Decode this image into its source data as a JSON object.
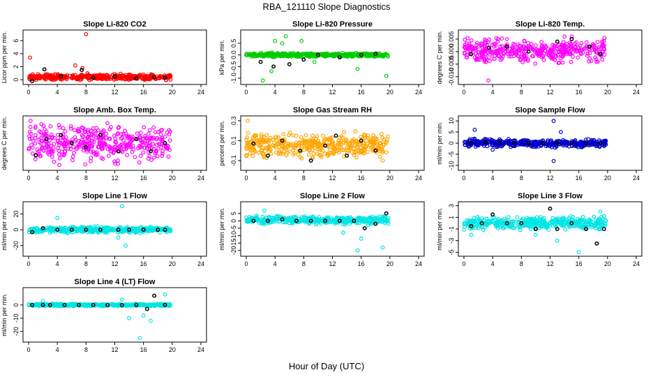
{
  "page_title": "RBA_121110  Slope Diagnostics",
  "x_axis_label": "Hour of Day (UTC)",
  "colors": {
    "co2": "#ff0000",
    "pressure": "#00cc00",
    "temp": "#ff00ff",
    "box_temp": "#ff00ff",
    "rh": "#ffa500",
    "sample_flow": "#0000cc",
    "line_flow": "#00e5e5",
    "marker": "#000000"
  },
  "chart_data": [
    {
      "type": "scatter",
      "id": "co2",
      "title": "Slope Li-820 CO2",
      "ylabel": "Licor ppm per min.",
      "xlim": [
        0,
        24
      ],
      "xticks": [
        0,
        4,
        8,
        12,
        16,
        20,
        24
      ],
      "ylim": [
        -0.3,
        7.2
      ],
      "yticks": [
        "0",
        "2",
        "4",
        "6"
      ],
      "ytick_values": [
        0,
        2,
        4,
        6
      ],
      "x_range": [
        0,
        19.8
      ],
      "center": 0.4,
      "spread": 0.25,
      "color": "#ff0000",
      "outliers": [
        [
          8,
          7
        ],
        [
          0.2,
          3.4
        ],
        [
          7.5,
          1.8
        ],
        [
          6.5,
          2.2
        ],
        [
          8.2,
          1.0
        ]
      ],
      "black_points": [
        [
          0.5,
          -0.2
        ],
        [
          2.2,
          1.6
        ],
        [
          4.5,
          0.5
        ],
        [
          7.4,
          1.5
        ],
        [
          9,
          0.3
        ],
        [
          12,
          0.5
        ],
        [
          15,
          0.2
        ],
        [
          17.5,
          0.4
        ],
        [
          19,
          0.3
        ]
      ]
    },
    {
      "type": "scatter",
      "id": "pressure",
      "title": "Slope Li-820 Pressure",
      "ylabel": "kPa per min.",
      "xlim": [
        0,
        24
      ],
      "xticks": [
        0,
        4,
        8,
        12,
        16,
        20,
        24
      ],
      "ylim": [
        -1.15,
        0.95
      ],
      "yticks": [
        "-1.0",
        "-0.5",
        "0.0",
        "0.5"
      ],
      "ytick_values": [
        -1.0,
        -0.5,
        0.0,
        0.5
      ],
      "x_range": [
        0,
        19.8
      ],
      "center": 0.0,
      "spread": 0.05,
      "color": "#00cc00",
      "outliers": [
        [
          2.3,
          -1.1
        ],
        [
          5.5,
          0.8
        ],
        [
          4.0,
          0.6
        ],
        [
          5.0,
          0.5
        ],
        [
          7.7,
          0.6
        ],
        [
          9.5,
          -0.3
        ],
        [
          15.5,
          -0.6
        ],
        [
          19.5,
          -0.9
        ],
        [
          3.5,
          -0.7
        ]
      ],
      "black_points": [
        [
          2.0,
          -0.3
        ],
        [
          3.8,
          -0.5
        ],
        [
          6,
          -0.4
        ],
        [
          8,
          -0.2
        ],
        [
          10,
          0.0
        ],
        [
          13,
          -0.1
        ],
        [
          16,
          0.0
        ],
        [
          18,
          0.05
        ]
      ]
    },
    {
      "type": "scatter",
      "id": "temp",
      "title": "Slope Li-820 Temp.",
      "ylabel": "degrees C per min.",
      "xlim": [
        0,
        24
      ],
      "xticks": [
        0,
        4,
        8,
        12,
        16,
        20,
        24
      ],
      "ylim": [
        -0.012,
        0.0075
      ],
      "yticks": [
        "-0.010",
        "-0.005",
        "0.000",
        "0.005"
      ],
      "ytick_values": [
        -0.01,
        -0.005,
        0.0,
        0.005
      ],
      "x_range": [
        0,
        19.8
      ],
      "center": 0.0005,
      "spread": 0.0025,
      "color": "#ff00ff",
      "outliers": [
        [
          3.4,
          -0.0115
        ],
        [
          14,
          0.006
        ],
        [
          15,
          0.006
        ],
        [
          6,
          0.005
        ]
      ],
      "black_points": [
        [
          1,
          -0.001
        ],
        [
          3.5,
          0.0015
        ],
        [
          6,
          0.002
        ],
        [
          9,
          0.0
        ],
        [
          13,
          0.004
        ],
        [
          15,
          0.005
        ],
        [
          17.5,
          0.002
        ],
        [
          19,
          -0.001
        ]
      ]
    },
    {
      "type": "scatter",
      "id": "box_temp",
      "title": "Slope Amb. Box Temp.",
      "ylabel": "degrees C per min.",
      "xlim": [
        0,
        24
      ],
      "xticks": [
        0,
        4,
        8,
        12,
        16,
        20,
        24
      ],
      "ylim": [
        -0.6,
        0.6
      ],
      "yticks": [],
      "ytick_values": [],
      "x_range": [
        0,
        19.8
      ],
      "center": 0.0,
      "spread": 0.25,
      "color": "#ff00ff",
      "outliers": [],
      "black_points": [
        [
          1,
          -0.3
        ],
        [
          2.5,
          0.1
        ],
        [
          4.5,
          0.2
        ],
        [
          6,
          0.0
        ],
        [
          8,
          -0.1
        ],
        [
          10,
          0.2
        ],
        [
          12.5,
          -0.2
        ],
        [
          15,
          0.1
        ],
        [
          17,
          -0.2
        ],
        [
          19,
          0.0
        ]
      ]
    },
    {
      "type": "scatter",
      "id": "rh",
      "title": "Slope Gas Stream RH",
      "ylabel": "percent per min.",
      "xlim": [
        0,
        24
      ],
      "xticks": [
        0,
        4,
        8,
        12,
        16,
        20,
        24
      ],
      "ylim": [
        -0.17,
        0.32
      ],
      "yticks": [
        "-0.1",
        "0.1",
        "0.3"
      ],
      "ytick_values": [
        -0.1,
        0.1,
        0.3
      ],
      "x_range": [
        0,
        19.8
      ],
      "center": 0.05,
      "spread": 0.07,
      "color": "#ffa500",
      "outliers": [
        [
          0.2,
          0.3
        ]
      ],
      "black_points": [
        [
          1,
          0.07
        ],
        [
          3,
          -0.05
        ],
        [
          5,
          0.1
        ],
        [
          7.5,
          0.0
        ],
        [
          9,
          -0.1
        ],
        [
          11,
          0.05
        ],
        [
          12.5,
          0.15
        ],
        [
          14,
          -0.05
        ],
        [
          16,
          0.1
        ],
        [
          18,
          0.0
        ]
      ]
    },
    {
      "type": "scatter",
      "id": "sample_flow",
      "title": "Slope Sample Flow",
      "ylabel": "ml/min per min.",
      "xlim": [
        0,
        24
      ],
      "xticks": [
        0,
        4,
        8,
        12,
        16,
        20,
        24
      ],
      "ylim": [
        -11,
        11
      ],
      "yticks": [
        "-10",
        "-5",
        "0",
        "5",
        "10"
      ],
      "ytick_values": [
        -10,
        -5,
        0,
        5,
        10
      ],
      "x_range": [
        0,
        19.8
      ],
      "center": 0.0,
      "spread": 1.0,
      "color": "#0000cc",
      "outliers": [
        [
          12.5,
          10
        ],
        [
          12.5,
          -8
        ],
        [
          1.5,
          6
        ],
        [
          4,
          -3
        ],
        [
          13.5,
          5
        ]
      ],
      "black_points": [
        [
          1,
          0
        ],
        [
          3,
          0.5
        ],
        [
          5,
          0
        ],
        [
          7,
          0
        ],
        [
          9,
          0
        ],
        [
          11,
          0
        ],
        [
          13,
          0
        ],
        [
          15,
          0
        ],
        [
          17,
          0
        ],
        [
          19,
          0
        ]
      ]
    },
    {
      "type": "scatter",
      "id": "line1",
      "title": "Slope Line 1 Flow",
      "ylabel": "ml/min per min.",
      "xlim": [
        0,
        24
      ],
      "xticks": [
        0,
        4,
        8,
        12,
        16,
        20,
        24
      ],
      "ylim": [
        -30,
        32
      ],
      "yticks": [
        "-20",
        "0",
        "20"
      ],
      "ytick_values": [
        -20,
        0,
        20
      ],
      "x_range": [
        0,
        19.8
      ],
      "center": 0.0,
      "spread": 2.0,
      "color": "#00e5e5",
      "outliers": [
        [
          13,
          30
        ],
        [
          13.5,
          -20
        ],
        [
          4,
          15
        ],
        [
          12.5,
          -10
        ]
      ],
      "black_points": [
        [
          0.5,
          -3
        ],
        [
          2,
          2
        ],
        [
          4,
          0
        ],
        [
          6,
          0
        ],
        [
          8,
          0
        ],
        [
          10,
          0
        ],
        [
          12.5,
          0
        ],
        [
          14,
          0
        ],
        [
          16,
          0
        ],
        [
          18,
          0
        ],
        [
          19,
          0
        ]
      ]
    },
    {
      "type": "scatter",
      "id": "line2",
      "title": "Slope Line 2 Flow",
      "ylabel": "ml/min per min.",
      "xlim": [
        0,
        24
      ],
      "xticks": [
        0,
        4,
        8,
        12,
        16,
        20,
        24
      ],
      "ylim": [
        -22,
        11
      ],
      "yticks": [
        "-20",
        "-15",
        "-10",
        "-5",
        "0",
        "5"
      ],
      "ytick_values": [
        -20,
        -15,
        -10,
        -5,
        0,
        5
      ],
      "x_range": [
        0,
        19.8
      ],
      "center": 0.5,
      "spread": 1.5,
      "color": "#00e5e5",
      "outliers": [
        [
          15.5,
          -20
        ],
        [
          19,
          -18
        ],
        [
          13.5,
          -8
        ],
        [
          16,
          -12
        ],
        [
          2.5,
          7
        ]
      ],
      "black_points": [
        [
          1,
          0
        ],
        [
          3,
          0
        ],
        [
          5,
          1
        ],
        [
          7,
          0
        ],
        [
          9,
          0
        ],
        [
          11,
          0
        ],
        [
          13,
          0
        ],
        [
          15,
          0
        ],
        [
          16.5,
          -5
        ],
        [
          18,
          -2
        ],
        [
          19.5,
          5
        ]
      ]
    },
    {
      "type": "scatter",
      "id": "line3",
      "title": "Slope Line 3 Flow",
      "ylabel": "ml/min per min.",
      "xlim": [
        0,
        24
      ],
      "xticks": [
        0,
        4,
        8,
        12,
        16,
        20,
        24
      ],
      "ylim": [
        -5.2,
        3.2
      ],
      "yticks": [
        "-5",
        "-3",
        "-1",
        "1",
        "3"
      ],
      "ytick_values": [
        -5,
        -3,
        -1,
        1,
        3
      ],
      "x_range": [
        0,
        19.8
      ],
      "center": 0.0,
      "spread": 0.6,
      "color": "#00e5e5",
      "outliers": [
        [
          16,
          -5
        ],
        [
          13,
          -3
        ],
        [
          10,
          -2
        ],
        [
          4,
          1
        ],
        [
          1,
          -2
        ],
        [
          19,
          2
        ]
      ],
      "black_points": [
        [
          1,
          -0.5
        ],
        [
          2.5,
          0
        ],
        [
          4,
          1.5
        ],
        [
          6,
          0
        ],
        [
          8,
          0
        ],
        [
          10,
          -1
        ],
        [
          12,
          2.5
        ],
        [
          13,
          -1
        ],
        [
          15,
          0
        ],
        [
          17,
          -1
        ],
        [
          18.5,
          -3.5
        ],
        [
          19.5,
          -1
        ]
      ]
    },
    {
      "type": "scatter",
      "id": "line4",
      "title": "Slope Line 4 (LT) Flow",
      "ylabel": "ml/min per min.",
      "xlim": [
        0,
        24
      ],
      "xticks": [
        0,
        4,
        8,
        12,
        16,
        20,
        24
      ],
      "ylim": [
        -26,
        11
      ],
      "yticks": [
        "-20",
        "-10",
        "0"
      ],
      "ytick_values": [
        -20,
        -10,
        0
      ],
      "x_range": [
        0,
        19.8
      ],
      "center": 0.0,
      "spread": 0.5,
      "color": "#00e5e5",
      "outliers": [
        [
          15.5,
          -25
        ],
        [
          14,
          -10
        ],
        [
          16,
          -8
        ],
        [
          17,
          -12
        ],
        [
          19,
          8
        ],
        [
          13,
          4
        ],
        [
          2,
          3
        ]
      ],
      "black_points": [
        [
          0.5,
          0
        ],
        [
          2,
          0
        ],
        [
          3,
          0
        ],
        [
          5,
          0
        ],
        [
          7,
          0
        ],
        [
          9,
          0
        ],
        [
          11,
          0
        ],
        [
          13,
          0
        ],
        [
          15,
          0
        ],
        [
          16.5,
          -3
        ],
        [
          17.5,
          7
        ],
        [
          19,
          0
        ]
      ]
    }
  ]
}
